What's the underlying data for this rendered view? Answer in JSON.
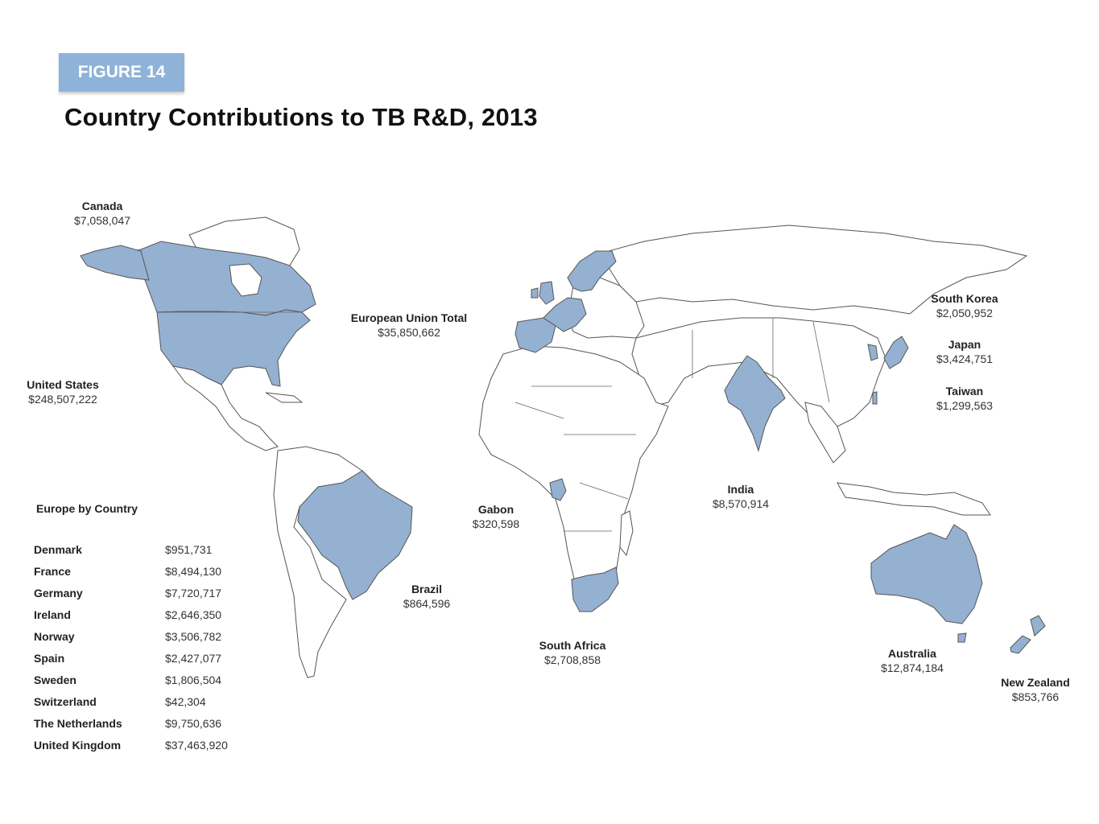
{
  "figure_label": "FIGURE 14",
  "title": "Country Contributions to TB R&D, 2013",
  "highlight_color": "#95b1d1",
  "badge_color": "#8fb2d8",
  "regions": [
    {
      "id": "canada",
      "name": "Canada",
      "value": "$7,058,047"
    },
    {
      "id": "united-states",
      "name": "United States",
      "value": "$248,507,222"
    },
    {
      "id": "european-union",
      "name": "European Union Total",
      "value": "$35,850,662"
    },
    {
      "id": "south-korea",
      "name": "South Korea",
      "value": "$2,050,952"
    },
    {
      "id": "japan",
      "name": "Japan",
      "value": "$3,424,751"
    },
    {
      "id": "taiwan",
      "name": "Taiwan",
      "value": "$1,299,563"
    },
    {
      "id": "india",
      "name": "India",
      "value": "$8,570,914"
    },
    {
      "id": "gabon",
      "name": "Gabon",
      "value": "$320,598"
    },
    {
      "id": "brazil",
      "name": "Brazil",
      "value": "$864,596"
    },
    {
      "id": "south-africa",
      "name": "South Africa",
      "value": "$2,708,858"
    },
    {
      "id": "australia",
      "name": "Australia",
      "value": "$12,874,184"
    },
    {
      "id": "new-zealand",
      "name": "New Zealand",
      "value": "$853,766"
    }
  ],
  "europe": {
    "title": "Europe by Country",
    "rows": [
      {
        "country": "Denmark",
        "value": "$951,731"
      },
      {
        "country": "France",
        "value": "$8,494,130"
      },
      {
        "country": "Germany",
        "value": "$7,720,717"
      },
      {
        "country": "Ireland",
        "value": "$2,646,350"
      },
      {
        "country": "Norway",
        "value": "$3,506,782"
      },
      {
        "country": "Spain",
        "value": "$2,427,077"
      },
      {
        "country": "Sweden",
        "value": "$1,806,504"
      },
      {
        "country": "Switzerland",
        "value": "$42,304"
      },
      {
        "country": "The Netherlands",
        "value": "$9,750,636"
      },
      {
        "country": "United Kingdom",
        "value": "$37,463,920"
      }
    ]
  }
}
